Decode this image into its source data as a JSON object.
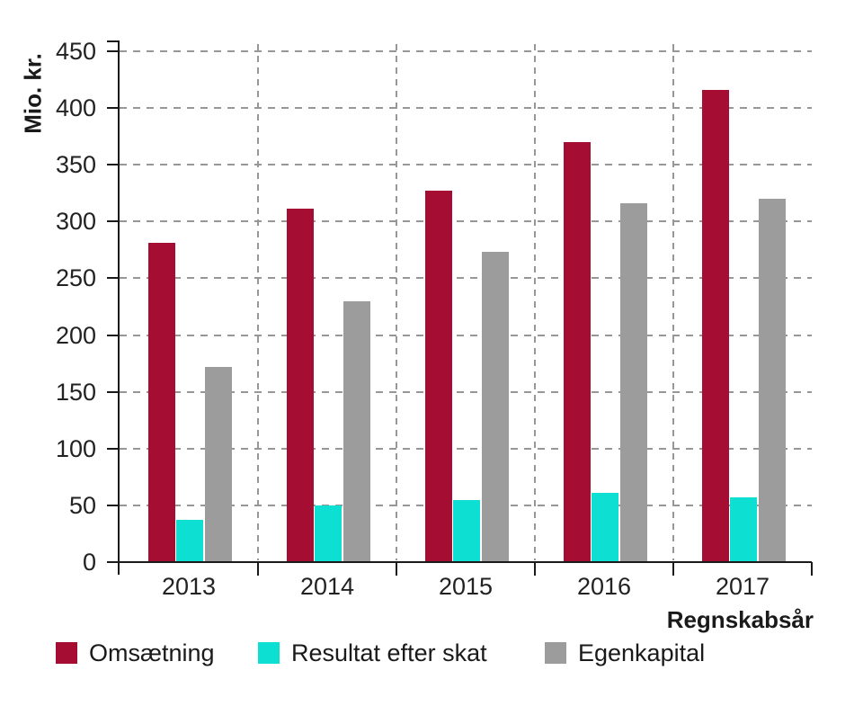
{
  "chart_data": {
    "type": "bar",
    "title": "",
    "categories": [
      "2013",
      "2014",
      "2015",
      "2016",
      "2017"
    ],
    "series": [
      {
        "name": "Omsætning",
        "color": "#a60d32",
        "values": [
          281,
          311,
          327,
          370,
          416
        ]
      },
      {
        "name": "Resultat efter skat",
        "color": "#0de0d2",
        "values": [
          37,
          50,
          55,
          61,
          57
        ]
      },
      {
        "name": "Egenkapital",
        "color": "#9c9c9c",
        "values": [
          172,
          230,
          273,
          316,
          320
        ]
      }
    ],
    "xlabel": "Regnskabsår",
    "ylabel": "Mio. kr.",
    "ylim": [
      0,
      450
    ],
    "ytick_step": 50,
    "ytick_labels": [
      "0",
      "50",
      "100",
      "150",
      "200",
      "250",
      "300",
      "350",
      "400",
      "450"
    ],
    "grid": "dashed",
    "gridlines": "horizontal at every 50, vertical dashed at category boundaries",
    "legend_position": "bottom"
  },
  "style": {
    "axis_color": "#1a1a1a",
    "grid_color": "#979797",
    "text_color": "#222222",
    "background": "#ffffff"
  }
}
